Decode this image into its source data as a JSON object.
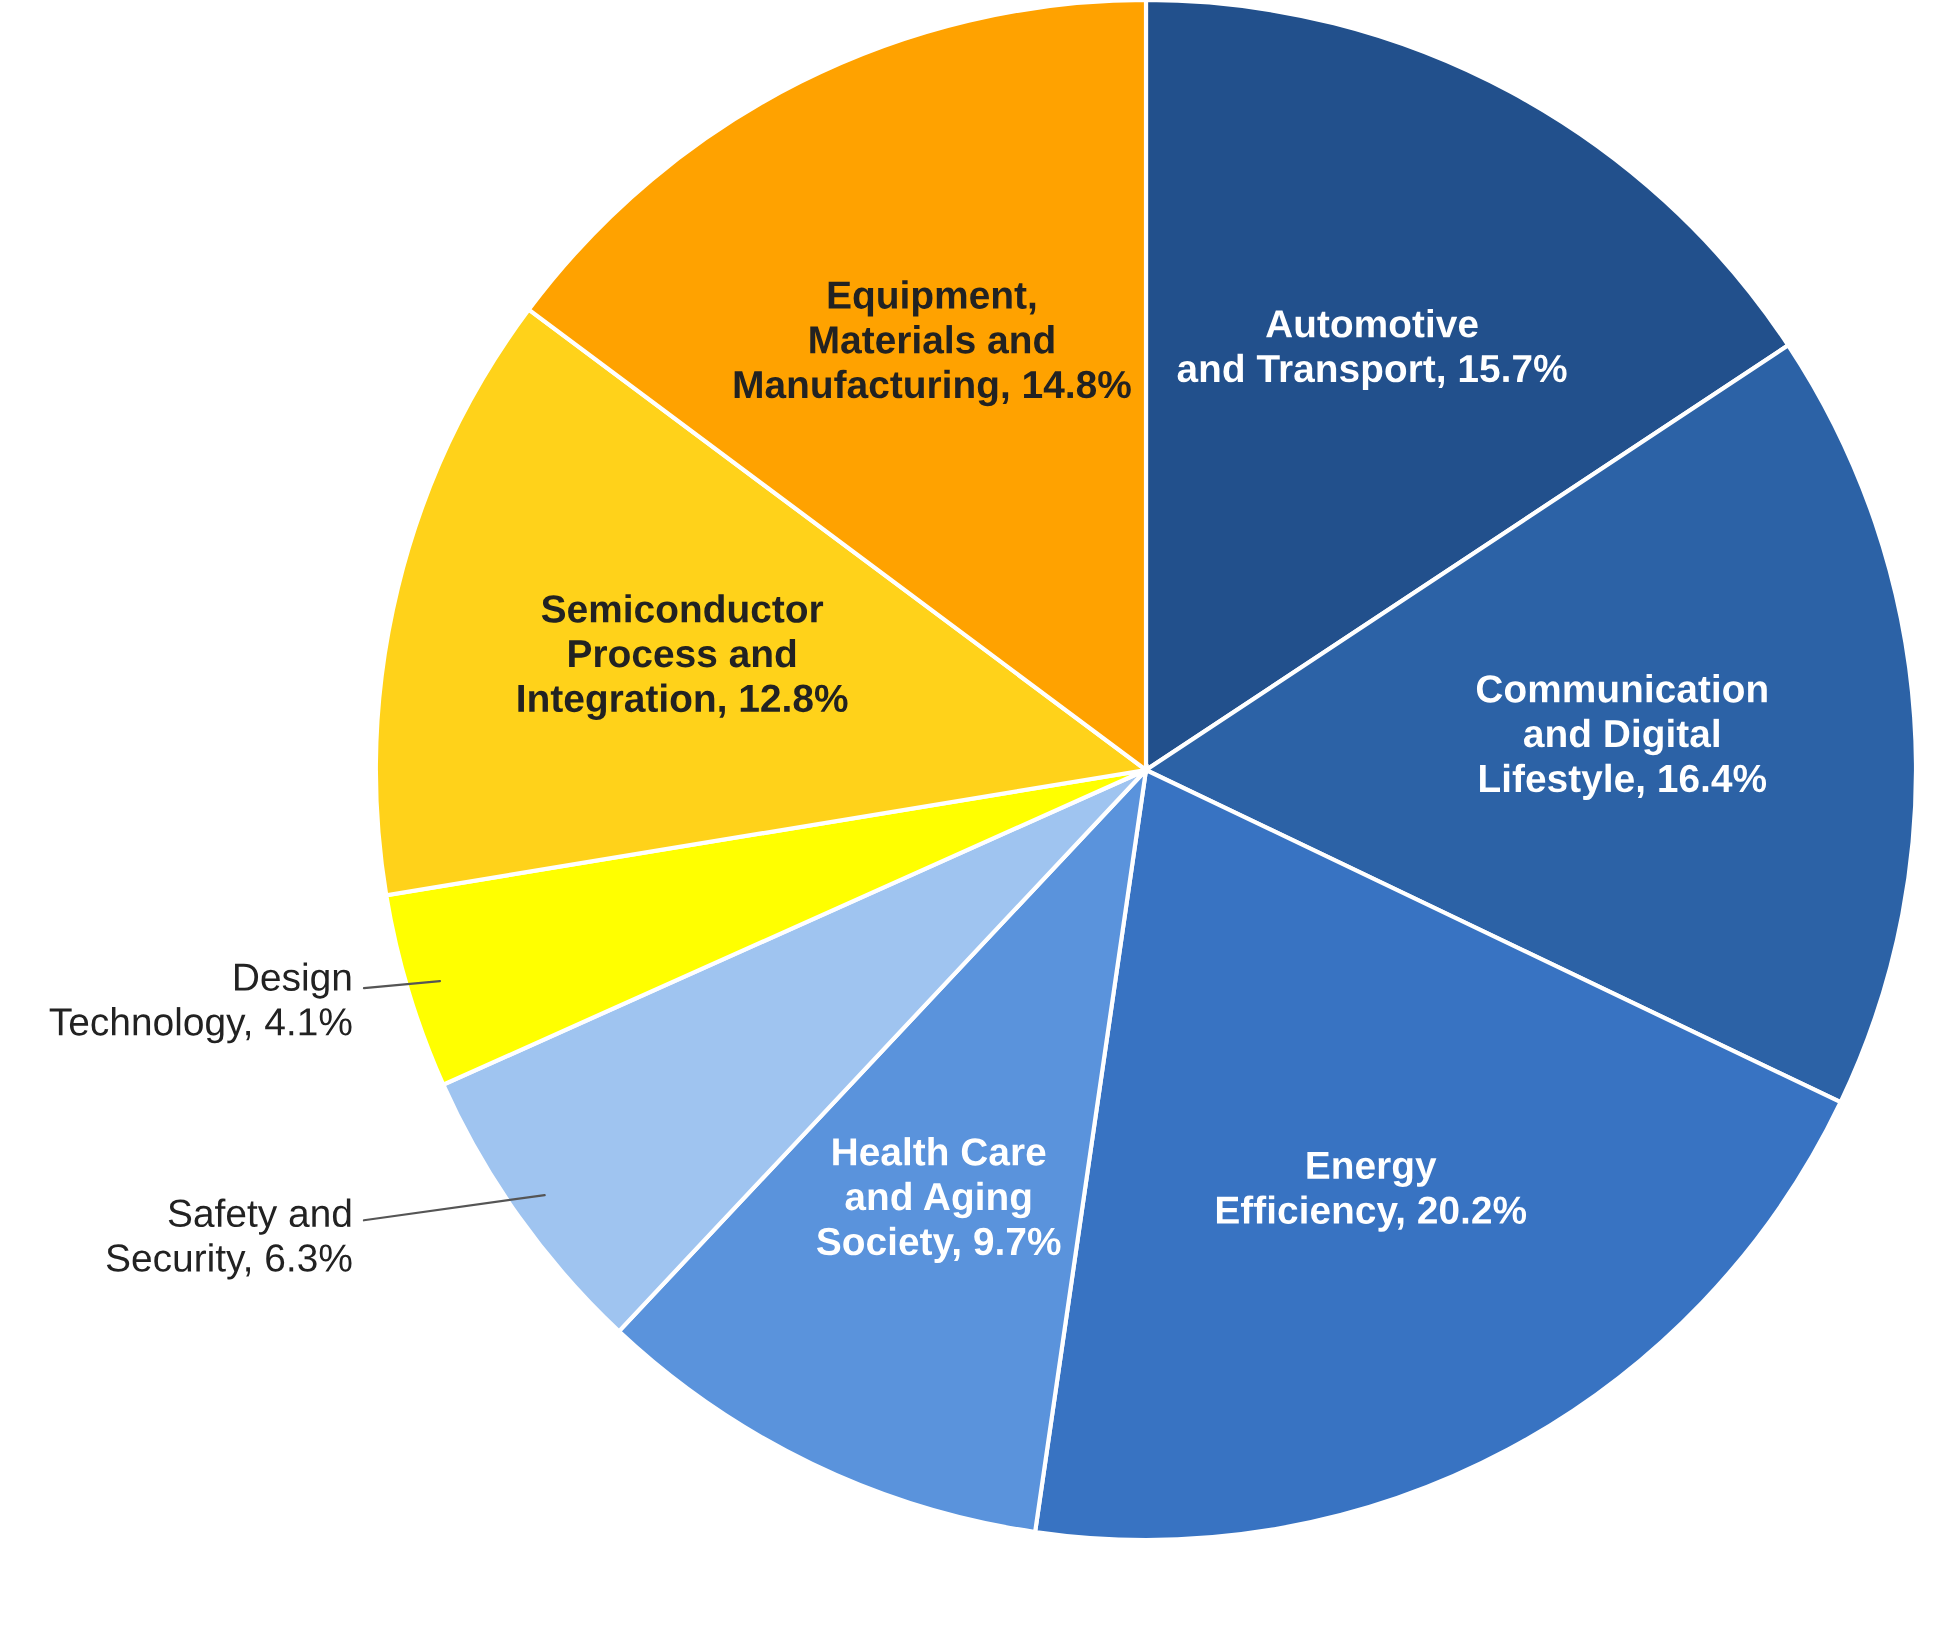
{
  "chart_data": {
    "type": "pie",
    "categories": [
      "Automotive\nand Transport",
      "Communication\nand Digital\nLifestyle",
      "Energy\nEfficiency",
      "Health Care\nand Aging\nSociety",
      "Safety and\nSecurity",
      "Design\nTechnology",
      "Semiconductor\nProcess and\nIntegration",
      "Equipment,\nMaterials and\nManufacturing"
    ],
    "value_labels": [
      "15.7%",
      "16.4%",
      "20.2%",
      "9.7%",
      "6.3%",
      "4.1%",
      "12.8%",
      "14.8%"
    ],
    "values": [
      15.7,
      16.4,
      20.2,
      9.7,
      6.3,
      4.1,
      12.8,
      14.8
    ],
    "colors": [
      "#22508c",
      "#2c62a6",
      "#3873c2",
      "#5a93dc",
      "#9fc4f0",
      "#ffff00",
      "#ffd21a",
      "#ffa200"
    ],
    "legend": false
  }
}
